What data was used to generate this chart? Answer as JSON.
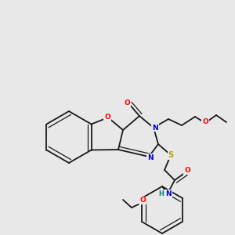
{
  "bg_color": "#e8e8e8",
  "bond_color": "#1a1a1a",
  "atom_colors": {
    "O": "#ff0000",
    "N": "#0000cc",
    "S": "#b8a000",
    "H": "#008080",
    "C": "#1a1a1a"
  },
  "figsize": [
    3.0,
    3.0
  ],
  "dpi": 100,
  "lw": 1.3,
  "lw2": 0.9
}
